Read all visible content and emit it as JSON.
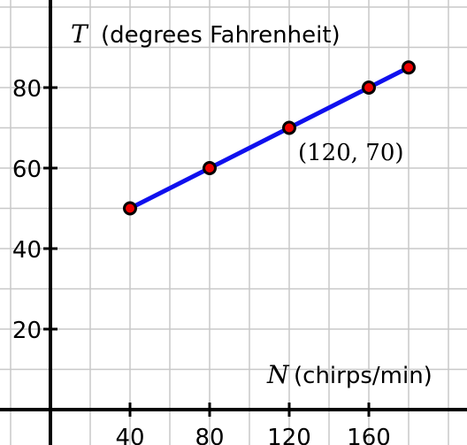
{
  "chart_data": {
    "type": "line",
    "x_axis": {
      "variable": "N",
      "label": "(chirps/min)",
      "ticks": [
        40,
        80,
        120,
        160
      ],
      "range": [
        -20,
        208
      ]
    },
    "y_axis": {
      "variable": "T",
      "label": "(degrees Fahrenheit)",
      "ticks": [
        20,
        40,
        60,
        80
      ],
      "range": [
        -10,
        100
      ]
    },
    "grid": true,
    "grid_x_step": 20,
    "grid_y_step": 10,
    "series": [
      {
        "color": "#1010ee",
        "marker_color": "#ee0000",
        "points": [
          {
            "x": 40,
            "y": 50
          },
          {
            "x": 80,
            "y": 60
          },
          {
            "x": 120,
            "y": 70
          },
          {
            "x": 160,
            "y": 80
          },
          {
            "x": 180,
            "y": 85
          }
        ]
      }
    ],
    "annotations": [
      {
        "text": "(120, 70)",
        "x": 120,
        "y": 70
      }
    ]
  }
}
